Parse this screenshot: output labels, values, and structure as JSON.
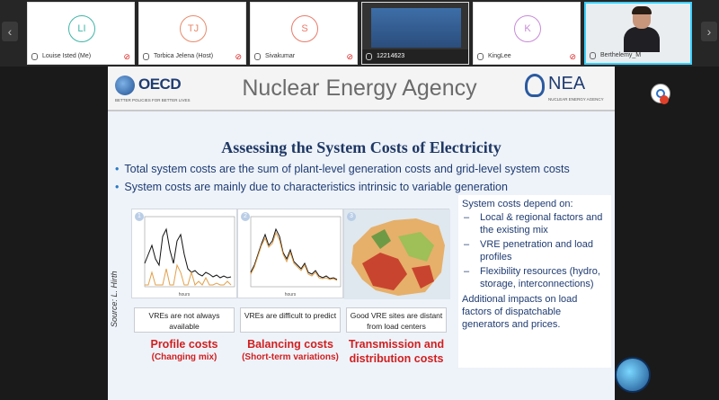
{
  "participants": [
    {
      "initials": "LI",
      "name": "Louise Isted (Me)",
      "color": "#3fb6a8",
      "muted": true
    },
    {
      "initials": "TJ",
      "name": "Torbica Jelena (Host)",
      "color": "#e98a6a",
      "muted": true
    },
    {
      "initials": "S",
      "name": "Sivakumar",
      "color": "#e97a6a",
      "muted": true
    },
    {
      "initials": "",
      "name": "12214623",
      "color": "#333333",
      "muted": false
    },
    {
      "initials": "K",
      "name": "KingLee",
      "color": "#c88ad8",
      "muted": true
    },
    {
      "initials": "",
      "name": "Berthelemy_M",
      "color": "#3bd0ff",
      "muted": false
    }
  ],
  "slide": {
    "oecd_logo": "OECD",
    "oecd_tagline": "BETTER POLICIES FOR BETTER LIVES",
    "header_title": "Nuclear Energy Agency",
    "nea_logo": "NEA",
    "nea_tagline": "NUCLEAR ENERGY AGENCY",
    "title": "Assessing the System Costs of Electricity",
    "bullets": [
      "Total system costs are the sum of plant-level generation costs and grid-level system costs",
      "System costs are mainly due to characteristics intrinsic to variable generation"
    ],
    "source": "Source: L. Hirth",
    "panels": [
      {
        "num": "1",
        "caption": "VREs are not always available",
        "cost": "Profile costs",
        "sub": "(Changing mix)"
      },
      {
        "num": "2",
        "caption": "VREs are difficult to predict",
        "cost": "Balancing costs",
        "sub": "(Short-term variations)"
      },
      {
        "num": "3",
        "caption": "Good VRE sites are distant from load centers",
        "cost": "Transmission and",
        "sub": "distribution costs"
      }
    ],
    "side": {
      "heading": "System costs depend on:",
      "items": [
        "Local & regional factors and the existing mix",
        "VRE penetration and load profiles",
        "Flexibility resources (hydro, storage, interconnections)"
      ],
      "tail": "Additional impacts on load factors of dispatchable generators and prices."
    }
  },
  "colors": {
    "accent_red": "#d11f1f",
    "title_blue": "#1f3864",
    "highlight": "#3bd0ff"
  }
}
